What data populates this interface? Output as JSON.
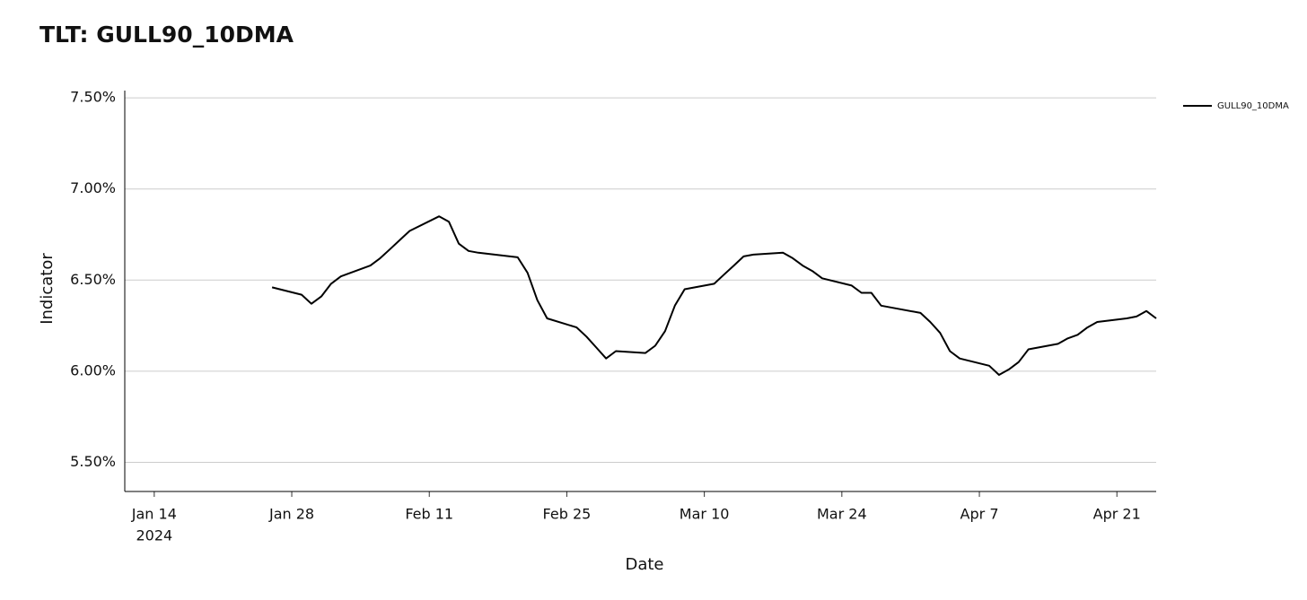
{
  "chart_data": {
    "type": "line",
    "title": "TLT: GULL90_10DMA",
    "x_label": "Date",
    "y_label": "Indicator",
    "x": [
      "2024-01-26",
      "2024-01-29",
      "2024-01-30",
      "2024-01-31",
      "2024-02-01",
      "2024-02-02",
      "2024-02-05",
      "2024-02-06",
      "2024-02-07",
      "2024-02-08",
      "2024-02-09",
      "2024-02-12",
      "2024-02-13",
      "2024-02-14",
      "2024-02-15",
      "2024-02-16",
      "2024-02-20",
      "2024-02-21",
      "2024-02-22",
      "2024-02-23",
      "2024-02-26",
      "2024-02-27",
      "2024-02-28",
      "2024-02-29",
      "2024-03-01",
      "2024-03-04",
      "2024-03-05",
      "2024-03-06",
      "2024-03-07",
      "2024-03-08",
      "2024-03-11",
      "2024-03-12",
      "2024-03-13",
      "2024-03-14",
      "2024-03-15",
      "2024-03-18",
      "2024-03-19",
      "2024-03-20",
      "2024-03-21",
      "2024-03-22",
      "2024-03-25",
      "2024-03-26",
      "2024-03-27",
      "2024-03-28",
      "2024-04-01",
      "2024-04-02",
      "2024-04-03",
      "2024-04-04",
      "2024-04-05",
      "2024-04-08",
      "2024-04-09",
      "2024-04-10",
      "2024-04-11",
      "2024-04-12",
      "2024-04-15",
      "2024-04-16",
      "2024-04-17",
      "2024-04-18",
      "2024-04-19",
      "2024-04-22",
      "2024-04-23",
      "2024-04-24",
      "2024-04-25"
    ],
    "series": [
      {
        "name": "GULL90_10DMA",
        "color": "#000000",
        "values": [
          6.46,
          6.42,
          6.37,
          6.41,
          6.48,
          6.52,
          6.58,
          6.62,
          6.67,
          6.72,
          6.77,
          6.85,
          6.82,
          6.7,
          6.66,
          6.65,
          6.625,
          6.54,
          6.39,
          6.29,
          6.24,
          6.19,
          6.13,
          6.07,
          6.11,
          6.1,
          6.14,
          6.22,
          6.36,
          6.45,
          6.48,
          6.53,
          6.58,
          6.63,
          6.64,
          6.65,
          6.62,
          6.58,
          6.55,
          6.51,
          6.47,
          6.43,
          6.43,
          6.36,
          6.32,
          6.27,
          6.21,
          6.11,
          6.07,
          6.03,
          5.98,
          6.01,
          6.05,
          6.12,
          6.15,
          6.18,
          6.2,
          6.24,
          6.27,
          6.29,
          6.3,
          6.33,
          6.29
        ]
      }
    ],
    "xlim": [
      "2024-01-11",
      "2024-04-25"
    ],
    "xticks": [
      {
        "value": "2024-01-14",
        "label": "Jan 14"
      },
      {
        "value": "2024-01-28",
        "label": "Jan 28"
      },
      {
        "value": "2024-02-11",
        "label": "Feb 11"
      },
      {
        "value": "2024-02-25",
        "label": "Feb 25"
      },
      {
        "value": "2024-03-10",
        "label": "Mar 10"
      },
      {
        "value": "2024-03-24",
        "label": "Mar 24"
      },
      {
        "value": "2024-04-07",
        "label": "Apr 7"
      },
      {
        "value": "2024-04-21",
        "label": "Apr 21"
      }
    ],
    "xtick_year": "2024",
    "ylim": [
      5.34,
      7.54
    ],
    "yticks": [
      {
        "value": 5.5,
        "label": "5.50%"
      },
      {
        "value": 6.0,
        "label": "6.00%"
      },
      {
        "value": 6.5,
        "label": "6.50%"
      },
      {
        "value": 7.0,
        "label": "7.00%"
      },
      {
        "value": 7.5,
        "label": "7.50%"
      }
    ],
    "grid": true,
    "legend": "right"
  }
}
